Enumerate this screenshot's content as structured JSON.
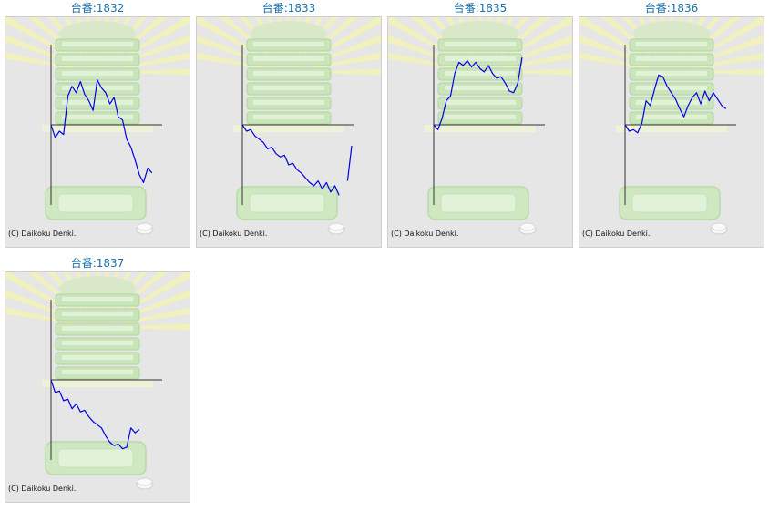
{
  "copyright": "(C) Daikoku Denki.",
  "colors": {
    "title": "#1a6fa8",
    "line": "#0000e6",
    "axis": "#333333"
  },
  "icons": [
    "sunburst-background",
    "slot-machine-stack-illustration",
    "coin-tray-illustration"
  ],
  "cards": [
    {
      "title": "台番:1832",
      "chart_data": {
        "type": "line",
        "series": [
          {
            "values": [
              0,
              -16,
              -8,
              -12,
              36,
              48,
              40,
              54,
              38,
              30,
              18,
              56,
              46,
              40,
              26,
              34,
              10,
              6,
              -18,
              -28,
              -44,
              -62,
              -72,
              -54,
              -60
            ]
          }
        ]
      }
    },
    {
      "title": "台番:1833",
      "chart_data": {
        "type": "line",
        "series": [
          {
            "values": [
              0,
              -8,
              -6,
              -14,
              -18,
              -22,
              -30,
              -28,
              -36,
              -40,
              -38,
              -50,
              -48,
              -56,
              -60,
              -66,
              -72,
              -76,
              -70,
              -80,
              -72,
              -84,
              -76,
              -88,
              null,
              -70,
              -26
            ]
          }
        ]
      }
    },
    {
      "title": "台番:1835",
      "chart_data": {
        "type": "line",
        "series": [
          {
            "values": [
              0,
              -6,
              8,
              30,
              36,
              64,
              78,
              74,
              80,
              72,
              78,
              70,
              66,
              74,
              64,
              58,
              60,
              52,
              42,
              40,
              52,
              84
            ]
          }
        ]
      }
    },
    {
      "title": "台番:1836",
      "chart_data": {
        "type": "line",
        "series": [
          {
            "values": [
              0,
              -8,
              -6,
              -10,
              2,
              30,
              24,
              44,
              62,
              60,
              48,
              40,
              32,
              20,
              10,
              24,
              34,
              40,
              26,
              42,
              30,
              40,
              32,
              24,
              20
            ]
          }
        ]
      }
    },
    {
      "title": "台番:1837",
      "chart_data": {
        "type": "line",
        "series": [
          {
            "values": [
              0,
              -16,
              -14,
              -26,
              -24,
              -36,
              -30,
              -40,
              -38,
              -46,
              -52,
              -56,
              -60,
              -70,
              -78,
              -82,
              -80,
              -86,
              -84,
              -60,
              -66,
              -62
            ]
          }
        ]
      }
    }
  ]
}
